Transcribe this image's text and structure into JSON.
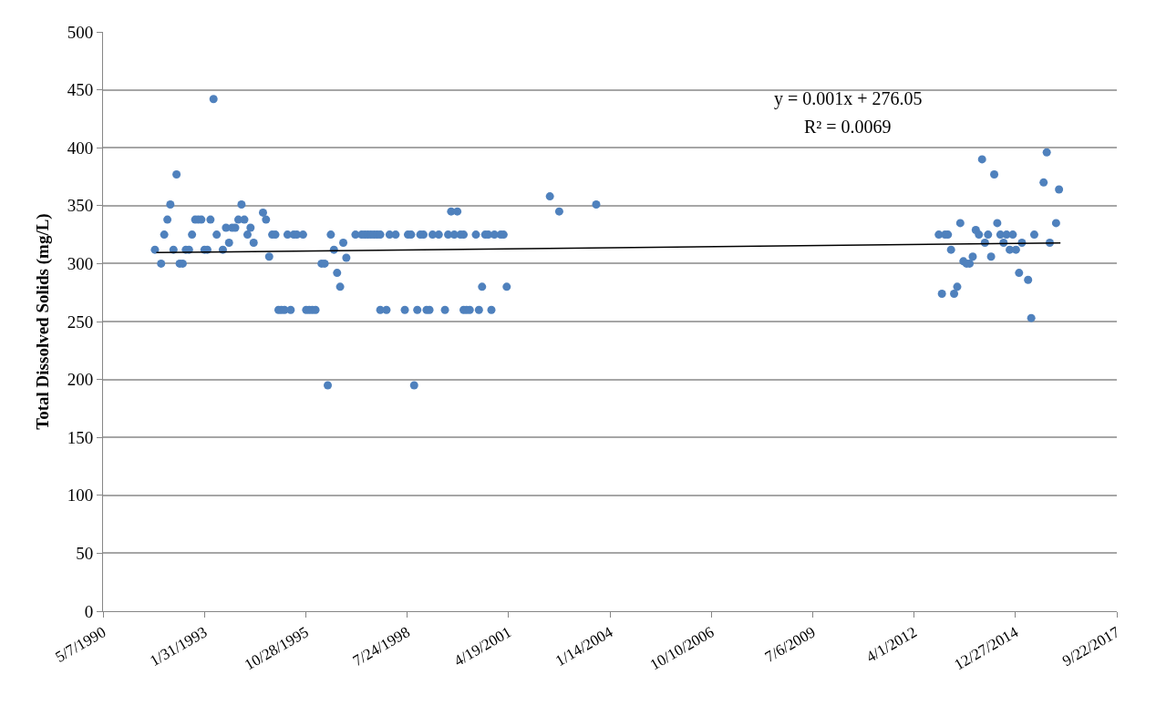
{
  "chart_data": {
    "type": "scatter",
    "ylabel": "Total Dissolved Solids (mg/L)",
    "xlim": [
      "1990-05-07",
      "2017-09-22"
    ],
    "xticks": [
      {
        "value": "1990-05-07",
        "label": "5/7/1990"
      },
      {
        "value": "1993-01-31",
        "label": "1/31/1993"
      },
      {
        "value": "1995-10-28",
        "label": "10/28/1995"
      },
      {
        "value": "1998-07-24",
        "label": "7/24/1998"
      },
      {
        "value": "2001-04-19",
        "label": "4/19/2001"
      },
      {
        "value": "2004-01-14",
        "label": "1/14/2004"
      },
      {
        "value": "2006-10-10",
        "label": "10/10/2006"
      },
      {
        "value": "2009-07-06",
        "label": "7/6/2009"
      },
      {
        "value": "2012-04-01",
        "label": "4/1/2012"
      },
      {
        "value": "2014-12-27",
        "label": "12/27/2014"
      },
      {
        "value": "2017-09-22",
        "label": "9/22/2017"
      }
    ],
    "ylim": [
      0,
      500
    ],
    "yticks": [
      0,
      50,
      100,
      150,
      200,
      250,
      300,
      350,
      400,
      450,
      500
    ],
    "grid": "y",
    "marker": "circle",
    "annotations": [
      "y = 0.001x + 276.05",
      "R² = 0.0069"
    ],
    "series": [
      {
        "color": "#4f81bd",
        "x": [
          "1991-10",
          "1991-12",
          "1992-01",
          "1992-02",
          "1992-03",
          "1992-04",
          "1992-05",
          "1992-06",
          "1992-07",
          "1992-08",
          "1992-09",
          "1992-10",
          "1992-11",
          "1992-12",
          "1993-01",
          "1993-02",
          "1993-03",
          "1993-04",
          "1993-05",
          "1993-06",
          "1993-08",
          "1993-09",
          "1993-10",
          "1993-11",
          "1993-12",
          "1994-01",
          "1994-02",
          "1994-03",
          "1994-04",
          "1994-05",
          "1994-06",
          "1994-09",
          "1994-10",
          "1994-11",
          "1994-12",
          "1995-01",
          "1995-02",
          "1995-03",
          "1995-04",
          "1995-05",
          "1995-06",
          "1995-07",
          "1995-08",
          "1995-10",
          "1995-11",
          "1995-12",
          "1996-01",
          "1996-02",
          "1996-04",
          "1996-05",
          "1996-06",
          "1996-07",
          "1996-08",
          "1996-09",
          "1996-10",
          "1996-11",
          "1996-12",
          "1997-03",
          "1997-05",
          "1997-06",
          "1997-07",
          "1997-08",
          "1997-09",
          "1997-10",
          "1997-11",
          "1997-11",
          "1998-01",
          "1998-02",
          "1998-04",
          "1998-07",
          "1998-08",
          "1998-09",
          "1998-10",
          "1998-11",
          "1998-12",
          "1999-01",
          "1999-02",
          "1999-03",
          "1999-04",
          "1999-06",
          "1999-08",
          "1999-09",
          "1999-10",
          "1999-11",
          "1999-12",
          "2000-01",
          "2000-02",
          "2000-02",
          "2000-03",
          "2000-04",
          "2000-06",
          "2000-07",
          "2000-08",
          "2000-09",
          "2000-10",
          "2000-11",
          "2000-12",
          "2001-02",
          "2001-03",
          "2001-04",
          "2002-06",
          "2002-09",
          "2003-09",
          "2012-12",
          "2013-01",
          "2013-02",
          "2013-03",
          "2013-04",
          "2013-05",
          "2013-06",
          "2013-07",
          "2013-08",
          "2013-09",
          "2013-10",
          "2013-11",
          "2013-12",
          "2014-01",
          "2014-02",
          "2014-03",
          "2014-04",
          "2014-05",
          "2014-06",
          "2014-07",
          "2014-08",
          "2014-09",
          "2014-10",
          "2014-11",
          "2014-12",
          "2015-01",
          "2015-02",
          "2015-03",
          "2015-05",
          "2015-06",
          "2015-07",
          "2015-10",
          "2015-11",
          "2015-12",
          "2016-02",
          "2016-03"
        ],
        "values": [
          312,
          300,
          325,
          338,
          351,
          312,
          377,
          300,
          300,
          312,
          312,
          325,
          338,
          338,
          338,
          312,
          312,
          338,
          442,
          325,
          312,
          331,
          318,
          331,
          331,
          338,
          351,
          338,
          325,
          331,
          318,
          344,
          338,
          306,
          325,
          325,
          260,
          260,
          260,
          325,
          260,
          325,
          325,
          325,
          260,
          260,
          260,
          260,
          300,
          300,
          195,
          325,
          312,
          292,
          280,
          318,
          305,
          325,
          325,
          325,
          325,
          325,
          325,
          325,
          325,
          260,
          260,
          325,
          325,
          260,
          325,
          325,
          195,
          260,
          325,
          325,
          260,
          260,
          325,
          325,
          260,
          325,
          345,
          325,
          345,
          325,
          260,
          325,
          260,
          260,
          325,
          260,
          280,
          325,
          325,
          260,
          325,
          325,
          325,
          280,
          358,
          345,
          351,
          325,
          274,
          325,
          325,
          312,
          274,
          280,
          335,
          302,
          300,
          300,
          306,
          329,
          325,
          390,
          318,
          325,
          306,
          377,
          335,
          325,
          318,
          325,
          312,
          325,
          312,
          292,
          318,
          286,
          253,
          325,
          370,
          396,
          318,
          335,
          364
        ]
      },
      {
        "type": "line",
        "color": "#000000",
        "marker": "none",
        "line_style": "solid",
        "x": [
          "1991-10-15",
          "2016-03-15"
        ],
        "values": [
          309.5,
          317.8
        ]
      }
    ]
  }
}
